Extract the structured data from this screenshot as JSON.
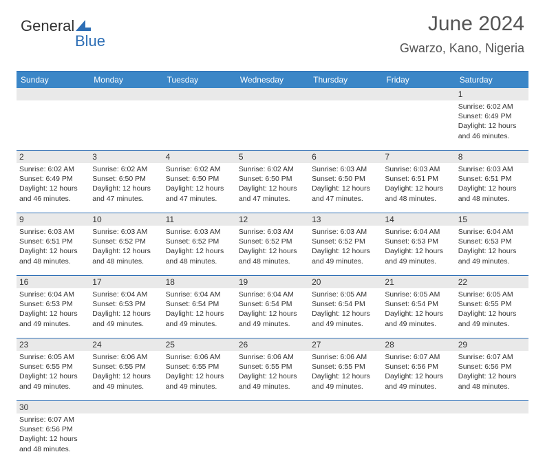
{
  "logo": {
    "text1": "General",
    "text2": "Blue"
  },
  "title": "June 2024",
  "location": "Gwarzo, Kano, Nigeria",
  "colors": {
    "header_bar": "#3b86c7",
    "border": "#2d6eb5",
    "number_bg": "#e9e9e9",
    "logo_blue": "#2d6eb5",
    "text": "#333333"
  },
  "weekdays": [
    "Sunday",
    "Monday",
    "Tuesday",
    "Wednesday",
    "Thursday",
    "Friday",
    "Saturday"
  ],
  "weeks": [
    {
      "numbers": [
        "",
        "",
        "",
        "",
        "",
        "",
        "1"
      ],
      "cells": [
        null,
        null,
        null,
        null,
        null,
        null,
        {
          "sunrise": "Sunrise: 6:02 AM",
          "sunset": "Sunset: 6:49 PM",
          "daylight1": "Daylight: 12 hours",
          "daylight2": "and 46 minutes."
        }
      ]
    },
    {
      "numbers": [
        "2",
        "3",
        "4",
        "5",
        "6",
        "7",
        "8"
      ],
      "cells": [
        {
          "sunrise": "Sunrise: 6:02 AM",
          "sunset": "Sunset: 6:49 PM",
          "daylight1": "Daylight: 12 hours",
          "daylight2": "and 46 minutes."
        },
        {
          "sunrise": "Sunrise: 6:02 AM",
          "sunset": "Sunset: 6:50 PM",
          "daylight1": "Daylight: 12 hours",
          "daylight2": "and 47 minutes."
        },
        {
          "sunrise": "Sunrise: 6:02 AM",
          "sunset": "Sunset: 6:50 PM",
          "daylight1": "Daylight: 12 hours",
          "daylight2": "and 47 minutes."
        },
        {
          "sunrise": "Sunrise: 6:02 AM",
          "sunset": "Sunset: 6:50 PM",
          "daylight1": "Daylight: 12 hours",
          "daylight2": "and 47 minutes."
        },
        {
          "sunrise": "Sunrise: 6:03 AM",
          "sunset": "Sunset: 6:50 PM",
          "daylight1": "Daylight: 12 hours",
          "daylight2": "and 47 minutes."
        },
        {
          "sunrise": "Sunrise: 6:03 AM",
          "sunset": "Sunset: 6:51 PM",
          "daylight1": "Daylight: 12 hours",
          "daylight2": "and 48 minutes."
        },
        {
          "sunrise": "Sunrise: 6:03 AM",
          "sunset": "Sunset: 6:51 PM",
          "daylight1": "Daylight: 12 hours",
          "daylight2": "and 48 minutes."
        }
      ]
    },
    {
      "numbers": [
        "9",
        "10",
        "11",
        "12",
        "13",
        "14",
        "15"
      ],
      "cells": [
        {
          "sunrise": "Sunrise: 6:03 AM",
          "sunset": "Sunset: 6:51 PM",
          "daylight1": "Daylight: 12 hours",
          "daylight2": "and 48 minutes."
        },
        {
          "sunrise": "Sunrise: 6:03 AM",
          "sunset": "Sunset: 6:52 PM",
          "daylight1": "Daylight: 12 hours",
          "daylight2": "and 48 minutes."
        },
        {
          "sunrise": "Sunrise: 6:03 AM",
          "sunset": "Sunset: 6:52 PM",
          "daylight1": "Daylight: 12 hours",
          "daylight2": "and 48 minutes."
        },
        {
          "sunrise": "Sunrise: 6:03 AM",
          "sunset": "Sunset: 6:52 PM",
          "daylight1": "Daylight: 12 hours",
          "daylight2": "and 48 minutes."
        },
        {
          "sunrise": "Sunrise: 6:03 AM",
          "sunset": "Sunset: 6:52 PM",
          "daylight1": "Daylight: 12 hours",
          "daylight2": "and 49 minutes."
        },
        {
          "sunrise": "Sunrise: 6:04 AM",
          "sunset": "Sunset: 6:53 PM",
          "daylight1": "Daylight: 12 hours",
          "daylight2": "and 49 minutes."
        },
        {
          "sunrise": "Sunrise: 6:04 AM",
          "sunset": "Sunset: 6:53 PM",
          "daylight1": "Daylight: 12 hours",
          "daylight2": "and 49 minutes."
        }
      ]
    },
    {
      "numbers": [
        "16",
        "17",
        "18",
        "19",
        "20",
        "21",
        "22"
      ],
      "cells": [
        {
          "sunrise": "Sunrise: 6:04 AM",
          "sunset": "Sunset: 6:53 PM",
          "daylight1": "Daylight: 12 hours",
          "daylight2": "and 49 minutes."
        },
        {
          "sunrise": "Sunrise: 6:04 AM",
          "sunset": "Sunset: 6:53 PM",
          "daylight1": "Daylight: 12 hours",
          "daylight2": "and 49 minutes."
        },
        {
          "sunrise": "Sunrise: 6:04 AM",
          "sunset": "Sunset: 6:54 PM",
          "daylight1": "Daylight: 12 hours",
          "daylight2": "and 49 minutes."
        },
        {
          "sunrise": "Sunrise: 6:04 AM",
          "sunset": "Sunset: 6:54 PM",
          "daylight1": "Daylight: 12 hours",
          "daylight2": "and 49 minutes."
        },
        {
          "sunrise": "Sunrise: 6:05 AM",
          "sunset": "Sunset: 6:54 PM",
          "daylight1": "Daylight: 12 hours",
          "daylight2": "and 49 minutes."
        },
        {
          "sunrise": "Sunrise: 6:05 AM",
          "sunset": "Sunset: 6:54 PM",
          "daylight1": "Daylight: 12 hours",
          "daylight2": "and 49 minutes."
        },
        {
          "sunrise": "Sunrise: 6:05 AM",
          "sunset": "Sunset: 6:55 PM",
          "daylight1": "Daylight: 12 hours",
          "daylight2": "and 49 minutes."
        }
      ]
    },
    {
      "numbers": [
        "23",
        "24",
        "25",
        "26",
        "27",
        "28",
        "29"
      ],
      "cells": [
        {
          "sunrise": "Sunrise: 6:05 AM",
          "sunset": "Sunset: 6:55 PM",
          "daylight1": "Daylight: 12 hours",
          "daylight2": "and 49 minutes."
        },
        {
          "sunrise": "Sunrise: 6:06 AM",
          "sunset": "Sunset: 6:55 PM",
          "daylight1": "Daylight: 12 hours",
          "daylight2": "and 49 minutes."
        },
        {
          "sunrise": "Sunrise: 6:06 AM",
          "sunset": "Sunset: 6:55 PM",
          "daylight1": "Daylight: 12 hours",
          "daylight2": "and 49 minutes."
        },
        {
          "sunrise": "Sunrise: 6:06 AM",
          "sunset": "Sunset: 6:55 PM",
          "daylight1": "Daylight: 12 hours",
          "daylight2": "and 49 minutes."
        },
        {
          "sunrise": "Sunrise: 6:06 AM",
          "sunset": "Sunset: 6:55 PM",
          "daylight1": "Daylight: 12 hours",
          "daylight2": "and 49 minutes."
        },
        {
          "sunrise": "Sunrise: 6:07 AM",
          "sunset": "Sunset: 6:56 PM",
          "daylight1": "Daylight: 12 hours",
          "daylight2": "and 49 minutes."
        },
        {
          "sunrise": "Sunrise: 6:07 AM",
          "sunset": "Sunset: 6:56 PM",
          "daylight1": "Daylight: 12 hours",
          "daylight2": "and 48 minutes."
        }
      ]
    },
    {
      "numbers": [
        "30",
        "",
        "",
        "",
        "",
        "",
        ""
      ],
      "cells": [
        {
          "sunrise": "Sunrise: 6:07 AM",
          "sunset": "Sunset: 6:56 PM",
          "daylight1": "Daylight: 12 hours",
          "daylight2": "and 48 minutes."
        },
        null,
        null,
        null,
        null,
        null,
        null
      ]
    }
  ]
}
